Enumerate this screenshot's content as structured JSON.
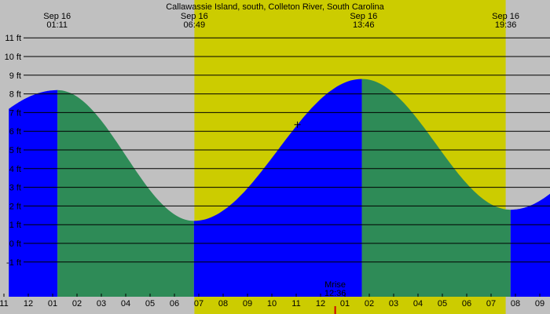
{
  "chart_data": {
    "type": "area",
    "title": "Callawassie Island, south, Colleton River, South Carolina",
    "y_unit": "ft",
    "ylim": [
      -2.0,
      11.0
    ],
    "y_ticks": [
      {
        "value": 11,
        "label": "11 ft"
      },
      {
        "value": 10,
        "label": "10 ft"
      },
      {
        "value": 9,
        "label": "9 ft"
      },
      {
        "value": 8,
        "label": "8 ft"
      },
      {
        "value": 7,
        "label": "7 ft"
      },
      {
        "value": 6,
        "label": "6 ft"
      },
      {
        "value": 5,
        "label": "5 ft"
      },
      {
        "value": 4,
        "label": "4 ft"
      },
      {
        "value": 3,
        "label": "3 ft"
      },
      {
        "value": 2,
        "label": "2 ft"
      },
      {
        "value": 1,
        "label": "1 ft"
      },
      {
        "value": 0,
        "label": "0 ft"
      },
      {
        "value": -1,
        "label": "-1 ft"
      }
    ],
    "xlim_hours": [
      -0.8,
      21.8
    ],
    "x_ticks": [
      {
        "hour": -1,
        "label": "11"
      },
      {
        "hour": 0,
        "label": "12"
      },
      {
        "hour": 1,
        "label": "01"
      },
      {
        "hour": 2,
        "label": "02"
      },
      {
        "hour": 3,
        "label": "03"
      },
      {
        "hour": 4,
        "label": "04"
      },
      {
        "hour": 5,
        "label": "05"
      },
      {
        "hour": 6,
        "label": "06"
      },
      {
        "hour": 7,
        "label": "07"
      },
      {
        "hour": 8,
        "label": "08"
      },
      {
        "hour": 9,
        "label": "09"
      },
      {
        "hour": 10,
        "label": "10"
      },
      {
        "hour": 11,
        "label": "11"
      },
      {
        "hour": 12,
        "label": "12"
      },
      {
        "hour": 13,
        "label": "01"
      },
      {
        "hour": 14,
        "label": "02"
      },
      {
        "hour": 15,
        "label": "03"
      },
      {
        "hour": 16,
        "label": "04"
      },
      {
        "hour": 17,
        "label": "05"
      },
      {
        "hour": 18,
        "label": "06"
      },
      {
        "hour": 19,
        "label": "07"
      },
      {
        "hour": 20,
        "label": "08"
      },
      {
        "hour": 21,
        "label": "09"
      }
    ],
    "daylight": {
      "start_hour": 6.82,
      "end_hour": 19.6
    },
    "sun_events": [
      {
        "hour": 1.183,
        "date": "Sep 16",
        "time": "01:11"
      },
      {
        "hour": 6.817,
        "date": "Sep 16",
        "time": "06:49"
      },
      {
        "hour": 13.767,
        "date": "Sep 16",
        "time": "13:46"
      },
      {
        "hour": 19.6,
        "date": "Sep 16",
        "time": "19:36"
      }
    ],
    "tide_extremes": [
      {
        "hour": -6.7,
        "height": 1.5,
        "kind": "low"
      },
      {
        "hour": 1.2,
        "height": 8.2,
        "kind": "high"
      },
      {
        "hour": 6.8,
        "height": 1.2,
        "kind": "low"
      },
      {
        "hour": 13.7,
        "height": 8.8,
        "kind": "high"
      },
      {
        "hour": 19.8,
        "height": 1.8,
        "kind": "low"
      },
      {
        "hour": 26.6,
        "height": 8.2,
        "kind": "high"
      }
    ],
    "moon_event": {
      "label": "Mrise",
      "time": "12:36",
      "hour": 12.6
    },
    "current_marker_hour": 11.05,
    "colors": {
      "night_background": "#c0c0c0",
      "day_background": "#cccc00",
      "rising_tide": "#0000ff",
      "falling_tide": "#2e8b57",
      "grid": "#000000",
      "moon_marker": "#cc0000"
    }
  }
}
